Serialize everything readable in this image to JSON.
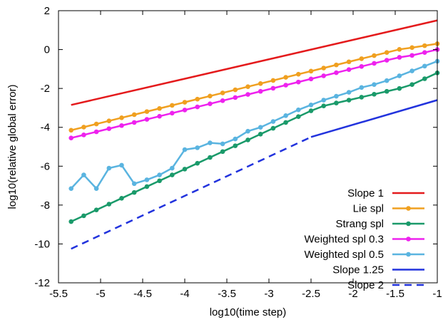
{
  "chart_data": {
    "type": "line",
    "xlabel": "log10(time step)",
    "ylabel": "log10(relative global error)",
    "xlim": [
      -5.5,
      -1
    ],
    "ylim": [
      -12,
      2
    ],
    "xticks": [
      -5.5,
      -5,
      -4.5,
      -4,
      -3.5,
      -3,
      -2.5,
      -2,
      -1.5,
      -1
    ],
    "xtick_labels": [
      "-5.5",
      "-5",
      "-4.5",
      "-4",
      "-3.5",
      "-3",
      "-2.5",
      "-2",
      "-1.5",
      "-1"
    ],
    "yticks": [
      2,
      0,
      -2,
      -4,
      -6,
      -8,
      -10,
      -12
    ],
    "ytick_labels": [
      "2",
      "0",
      "-2",
      "-4",
      "-6",
      "-8",
      "-10",
      "-12"
    ],
    "grid": false,
    "legend_position": "bottom-right",
    "series": [
      {
        "name": "Slope 1",
        "color": "#e41a1c",
        "style": "solid",
        "markers": false,
        "x": [
          -5.35,
          -1
        ],
        "y": [
          -2.85,
          1.5
        ]
      },
      {
        "name": "Lie spl",
        "color": "#f0a020",
        "style": "solid",
        "markers": true,
        "x": [
          -5.35,
          -5.2,
          -5.05,
          -4.9,
          -4.75,
          -4.6,
          -4.45,
          -4.3,
          -4.15,
          -4.0,
          -3.85,
          -3.7,
          -3.55,
          -3.4,
          -3.25,
          -3.1,
          -2.95,
          -2.8,
          -2.65,
          -2.5,
          -2.35,
          -2.2,
          -2.05,
          -1.9,
          -1.75,
          -1.6,
          -1.45,
          -1.3,
          -1.15,
          -1.0
        ],
        "y": [
          -4.15,
          -3.99,
          -3.83,
          -3.67,
          -3.51,
          -3.35,
          -3.19,
          -3.03,
          -2.87,
          -2.71,
          -2.55,
          -2.39,
          -2.23,
          -2.07,
          -1.91,
          -1.75,
          -1.59,
          -1.43,
          -1.27,
          -1.11,
          -0.95,
          -0.79,
          -0.63,
          -0.47,
          -0.31,
          -0.15,
          0.01,
          0.1,
          0.2,
          0.3
        ]
      },
      {
        "name": "Strang spl",
        "color": "#1a9a6a",
        "style": "solid",
        "markers": true,
        "x": [
          -5.35,
          -5.2,
          -5.05,
          -4.9,
          -4.75,
          -4.6,
          -4.45,
          -4.3,
          -4.15,
          -4.0,
          -3.85,
          -3.7,
          -3.55,
          -3.4,
          -3.25,
          -3.1,
          -2.95,
          -2.8,
          -2.65,
          -2.5,
          -2.35,
          -2.2,
          -2.05,
          -1.9,
          -1.75,
          -1.6,
          -1.45,
          -1.3,
          -1.15,
          -1.0
        ],
        "y": [
          -8.85,
          -8.55,
          -8.25,
          -7.95,
          -7.65,
          -7.35,
          -7.05,
          -6.75,
          -6.45,
          -6.15,
          -5.85,
          -5.55,
          -5.25,
          -4.95,
          -4.65,
          -4.35,
          -4.05,
          -3.75,
          -3.45,
          -3.15,
          -2.9,
          -2.75,
          -2.6,
          -2.45,
          -2.3,
          -2.15,
          -2.0,
          -1.8,
          -1.5,
          -1.2
        ]
      },
      {
        "name": "Weighted spl 0.3",
        "color": "#ee22ee",
        "style": "solid",
        "markers": true,
        "x": [
          -5.35,
          -5.2,
          -5.05,
          -4.9,
          -4.75,
          -4.6,
          -4.45,
          -4.3,
          -4.15,
          -4.0,
          -3.85,
          -3.7,
          -3.55,
          -3.4,
          -3.25,
          -3.1,
          -2.95,
          -2.8,
          -2.65,
          -2.5,
          -2.35,
          -2.2,
          -2.05,
          -1.9,
          -1.75,
          -1.6,
          -1.45,
          -1.3,
          -1.15,
          -1.0
        ],
        "y": [
          -4.55,
          -4.39,
          -4.23,
          -4.07,
          -3.91,
          -3.75,
          -3.59,
          -3.43,
          -3.27,
          -3.11,
          -2.95,
          -2.79,
          -2.63,
          -2.47,
          -2.31,
          -2.15,
          -1.99,
          -1.83,
          -1.67,
          -1.51,
          -1.35,
          -1.19,
          -1.03,
          -0.87,
          -0.71,
          -0.55,
          -0.4,
          -0.3,
          -0.15,
          0.0
        ]
      },
      {
        "name": "Weighted spl 0.5",
        "color": "#5ab4e0",
        "style": "solid",
        "markers": true,
        "x": [
          -5.35,
          -5.2,
          -5.05,
          -4.9,
          -4.75,
          -4.6,
          -4.45,
          -4.3,
          -4.15,
          -4.0,
          -3.85,
          -3.7,
          -3.55,
          -3.4,
          -3.25,
          -3.1,
          -2.95,
          -2.8,
          -2.65,
          -2.5,
          -2.35,
          -2.2,
          -2.05,
          -1.9,
          -1.75,
          -1.6,
          -1.45,
          -1.3,
          -1.15,
          -1.0
        ],
        "y": [
          -7.15,
          -6.45,
          -7.15,
          -6.1,
          -5.95,
          -6.9,
          -6.7,
          -6.45,
          -6.1,
          -5.15,
          -5.05,
          -4.8,
          -4.85,
          -4.6,
          -4.2,
          -4.0,
          -3.7,
          -3.4,
          -3.1,
          -2.85,
          -2.6,
          -2.4,
          -2.2,
          -1.95,
          -1.8,
          -1.6,
          -1.35,
          -1.1,
          -0.85,
          -0.6
        ]
      },
      {
        "name": "Slope 1.25",
        "color": "#2233dd",
        "style": "solid",
        "markers": false,
        "x": [
          -2.5,
          -1
        ],
        "y": [
          -4.5,
          -2.6
        ]
      },
      {
        "name": "Slope 2",
        "color": "#2233dd",
        "style": "dashed",
        "markers": false,
        "x": [
          -5.35,
          -2.5
        ],
        "y": [
          -10.25,
          -4.5
        ]
      }
    ]
  }
}
